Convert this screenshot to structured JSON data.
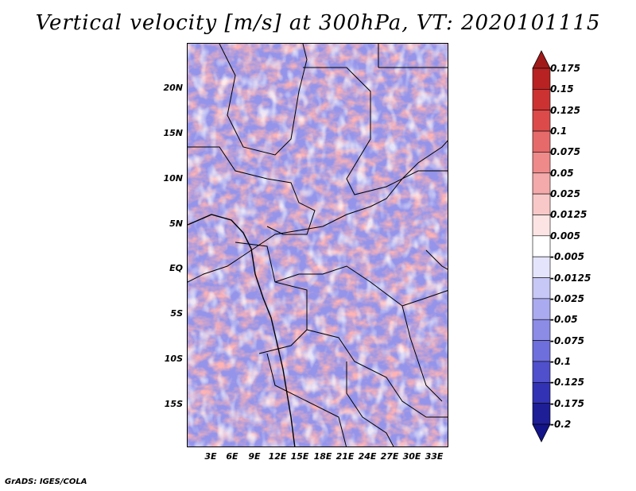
{
  "title": "Vertical velocity [m/s] at 300hPa, VT: 2020101115",
  "footer": "GrADS: IGES/COLA",
  "map": {
    "variable": "Vertical velocity",
    "units": "m/s",
    "level": "300hPa",
    "valid_time": "2020101115",
    "lat_labels": [
      "20N",
      "15N",
      "10N",
      "5N",
      "EQ",
      "5S",
      "10S",
      "15S"
    ],
    "lon_labels": [
      "3E",
      "6E",
      "9E",
      "12E",
      "15E",
      "18E",
      "21E",
      "24E",
      "27E",
      "30E",
      "33E"
    ],
    "lat_range": [
      -20,
      25
    ],
    "lon_range": [
      0,
      35
    ]
  },
  "colorbar": {
    "labels": [
      "0.175",
      "0.15",
      "0.125",
      "0.1",
      "0.075",
      "0.05",
      "0.025",
      "0.0125",
      "0.005",
      "-0.005",
      "-0.0125",
      "-0.025",
      "-0.05",
      "-0.075",
      "-0.1",
      "-0.125",
      "-0.175",
      "-0.2"
    ],
    "colors": [
      "#a01a1a",
      "#b82222",
      "#cc3232",
      "#dc4a4a",
      "#e66a6a",
      "#ee8a8a",
      "#f4aaaa",
      "#f8c8c8",
      "#fce4e4",
      "#ffffff",
      "#e4e4fc",
      "#c8c8f6",
      "#aaaaf0",
      "#8c8ce6",
      "#6e6edc",
      "#5050cc",
      "#3232b4",
      "#1e1e96",
      "#14148a"
    ]
  }
}
